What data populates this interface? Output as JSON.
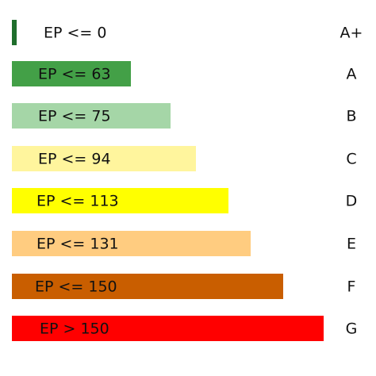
{
  "rows": [
    {
      "label": "EP <= 0",
      "grade": "A+",
      "color": "#1f6e2c"
    },
    {
      "label": "EP <= 63",
      "grade": "A",
      "color": "#43a047"
    },
    {
      "label": "EP <= 75",
      "grade": "B",
      "color": "#a5d6a7"
    },
    {
      "label": "EP <= 94",
      "grade": "C",
      "color": "#fff59d"
    },
    {
      "label": "EP <= 113",
      "grade": "D",
      "color": "#ffff00"
    },
    {
      "label": "EP <= 131",
      "grade": "E",
      "color": "#ffcc80"
    },
    {
      "label": "EP <= 150",
      "grade": "F",
      "color": "#c95e00"
    },
    {
      "label": "EP > 150",
      "grade": "G",
      "color": "#ff0000"
    }
  ]
}
